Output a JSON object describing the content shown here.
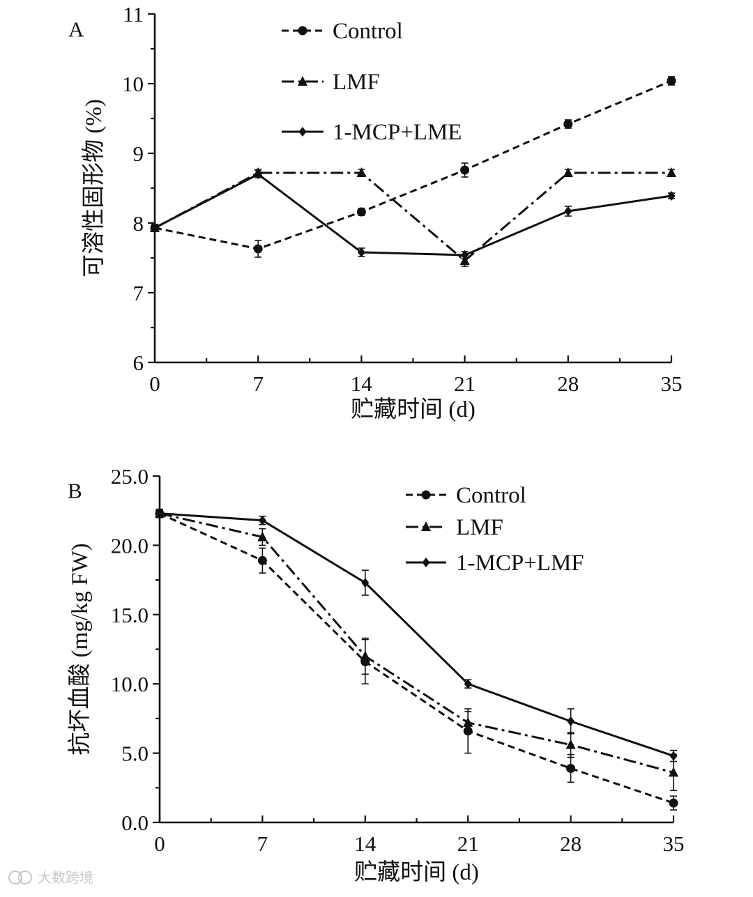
{
  "chart_data": [
    {
      "type": "line",
      "panel_label": "A",
      "xlabel": "贮藏时间 (d)",
      "ylabel": "可溶性固形物 (%)",
      "x": [
        0,
        7,
        14,
        21,
        28,
        35
      ],
      "xlim": [
        0,
        35
      ],
      "ylim": [
        6,
        11
      ],
      "yticks": [
        "6",
        "7",
        "8",
        "9",
        "10",
        "11"
      ],
      "grid": false,
      "legend_position": "top-center",
      "series": [
        {
          "name": "Control",
          "style": "dashed",
          "marker": "circle",
          "values": [
            7.93,
            7.63,
            8.16,
            8.76,
            9.42,
            10.04
          ],
          "errors": [
            0.05,
            0.12,
            0.05,
            0.1,
            0.06,
            0.06
          ]
        },
        {
          "name": "LMF",
          "style": "dash-dot",
          "marker": "triangle",
          "values": [
            7.93,
            8.72,
            8.72,
            7.46,
            8.72,
            8.72
          ],
          "errors": [
            0.05,
            0.05,
            0.05,
            0.08,
            0.05,
            0.05
          ]
        },
        {
          "name": "1-MCP+LME",
          "style": "solid",
          "marker": "diamond",
          "values": [
            7.93,
            8.7,
            7.58,
            7.54,
            8.17,
            8.39
          ],
          "errors": [
            0.05,
            0.05,
            0.06,
            0.05,
            0.07,
            0.04
          ]
        }
      ]
    },
    {
      "type": "line",
      "panel_label": "B",
      "xlabel": "贮藏时间 (d)",
      "ylabel": "抗坏血酸 (mg/kg FW)",
      "x": [
        0,
        7,
        14,
        21,
        28,
        35
      ],
      "xlim": [
        0,
        35
      ],
      "ylim": [
        0,
        25
      ],
      "yticks": [
        "0.0",
        "5.0",
        "10.0",
        "15.0",
        "20.0",
        "25.0"
      ],
      "grid": false,
      "legend_position": "top-right",
      "series": [
        {
          "name": "Control",
          "style": "dashed",
          "marker": "circle",
          "values": [
            22.3,
            18.9,
            11.6,
            6.6,
            3.9,
            1.4
          ],
          "errors": [
            0.3,
            0.9,
            1.6,
            1.6,
            1.0,
            0.5
          ]
        },
        {
          "name": "LMF",
          "style": "dash-dot",
          "marker": "triangle",
          "values": [
            22.3,
            20.6,
            12.0,
            7.2,
            5.6,
            3.6
          ],
          "errors": [
            0.3,
            0.6,
            1.3,
            0.8,
            0.9,
            1.3
          ]
        },
        {
          "name": "1-MCP+LMF",
          "style": "solid",
          "marker": "diamond",
          "values": [
            22.3,
            21.8,
            17.3,
            10.0,
            7.3,
            4.8
          ],
          "errors": [
            0.3,
            0.3,
            0.9,
            0.3,
            0.9,
            0.4
          ]
        }
      ]
    }
  ],
  "watermark": "大数跨境"
}
